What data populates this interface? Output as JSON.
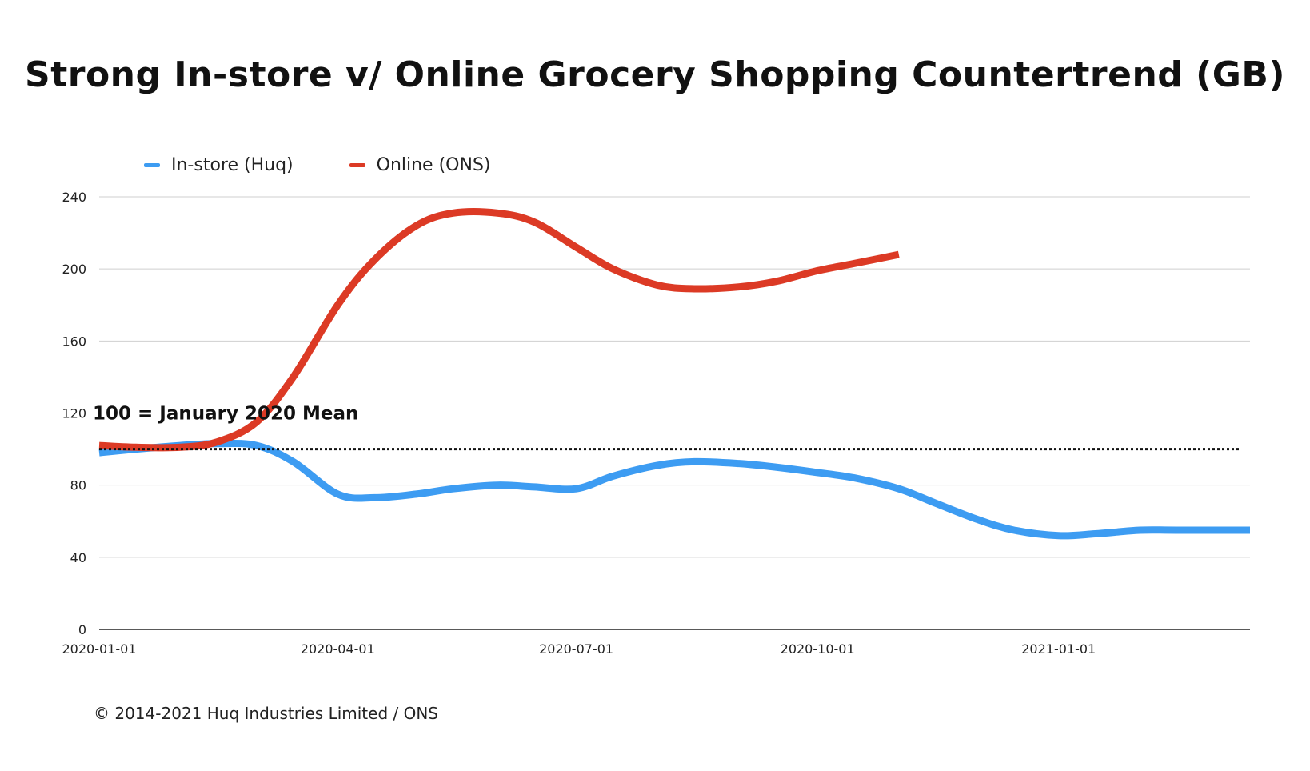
{
  "chart_data": {
    "type": "line",
    "title": "Strong In-store v/ Online Grocery Shopping Countertrend (GB)",
    "xlabel": "",
    "ylabel": "",
    "ylim": [
      0,
      240
    ],
    "yticks": [
      "0",
      "40",
      "80",
      "120",
      "160",
      "200",
      "240"
    ],
    "xlim": [
      "2020-01-01",
      "2021-03-15"
    ],
    "xticks": [
      "2020-01-01",
      "2020-04-01",
      "2020-07-01",
      "2020-10-01",
      "2021-01-01"
    ],
    "grid": true,
    "legend_position": "top-left",
    "reference_line": {
      "y": 100,
      "label": "100 = January 2020 Mean",
      "style": "dotted",
      "color": "#111111"
    },
    "series": [
      {
        "name": "In-store (Huq)",
        "color": "#3d9cf2",
        "points": [
          [
            "2020-01-01",
            98
          ],
          [
            "2020-01-15",
            100
          ],
          [
            "2020-02-01",
            102
          ],
          [
            "2020-02-15",
            103
          ],
          [
            "2020-03-01",
            102
          ],
          [
            "2020-03-15",
            93
          ],
          [
            "2020-04-01",
            75
          ],
          [
            "2020-04-15",
            73
          ],
          [
            "2020-05-01",
            75
          ],
          [
            "2020-05-15",
            78
          ],
          [
            "2020-06-01",
            80
          ],
          [
            "2020-06-15",
            79
          ],
          [
            "2020-07-01",
            78
          ],
          [
            "2020-07-15",
            85
          ],
          [
            "2020-08-01",
            91
          ],
          [
            "2020-08-15",
            93
          ],
          [
            "2020-09-01",
            92
          ],
          [
            "2020-09-15",
            90
          ],
          [
            "2020-10-01",
            87
          ],
          [
            "2020-10-15",
            84
          ],
          [
            "2020-11-01",
            78
          ],
          [
            "2020-11-15",
            70
          ],
          [
            "2020-12-01",
            61
          ],
          [
            "2020-12-15",
            55
          ],
          [
            "2021-01-01",
            52
          ],
          [
            "2021-01-15",
            53
          ],
          [
            "2021-02-01",
            55
          ],
          [
            "2021-02-15",
            55
          ],
          [
            "2021-03-15",
            55
          ]
        ]
      },
      {
        "name": "Online (ONS)",
        "color": "#dc3a25",
        "points": [
          [
            "2020-01-01",
            102
          ],
          [
            "2020-01-15",
            101
          ],
          [
            "2020-02-01",
            101
          ],
          [
            "2020-02-15",
            104
          ],
          [
            "2020-03-01",
            115
          ],
          [
            "2020-03-15",
            140
          ],
          [
            "2020-04-01",
            180
          ],
          [
            "2020-04-15",
            205
          ],
          [
            "2020-05-01",
            224
          ],
          [
            "2020-05-15",
            231
          ],
          [
            "2020-06-01",
            231
          ],
          [
            "2020-06-15",
            226
          ],
          [
            "2020-07-01",
            212
          ],
          [
            "2020-07-15",
            200
          ],
          [
            "2020-08-01",
            191
          ],
          [
            "2020-08-15",
            189
          ],
          [
            "2020-09-01",
            190
          ],
          [
            "2020-09-15",
            193
          ],
          [
            "2020-10-01",
            199
          ],
          [
            "2020-10-15",
            203
          ],
          [
            "2020-11-01",
            208
          ]
        ]
      }
    ]
  },
  "footer": {
    "copyright": "© 2014-2021 Huq Industries Limited / ONS"
  }
}
